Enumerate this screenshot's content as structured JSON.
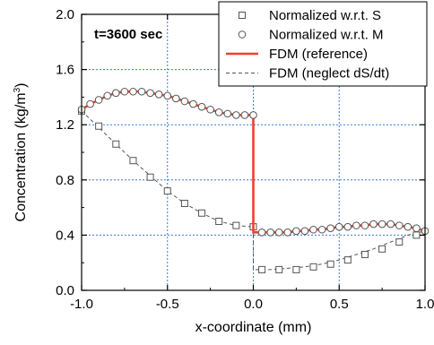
{
  "chart_data": {
    "type": "line",
    "title": "",
    "annotation": "t=3600 sec",
    "xlabel": "x-coordinate (mm)",
    "ylabel_main": "Concentration (kg/m",
    "ylabel_sup": "3",
    "ylabel_close": ")",
    "xlim": [
      -1.0,
      1.0
    ],
    "ylim": [
      0.0,
      2.0
    ],
    "xticks": [
      -1.0,
      -0.5,
      0.0,
      0.5,
      1.0
    ],
    "xtick_labels": [
      "-1.0",
      "-0.5",
      "0.0",
      "0.5",
      "1.0"
    ],
    "yticks": [
      0.0,
      0.4,
      0.8,
      1.2,
      1.6,
      2.0
    ],
    "ytick_labels": [
      "0.0",
      "0.4",
      "0.8",
      "1.2",
      "1.6",
      "2.0"
    ],
    "grid": true,
    "grid_color": "#3a78d8",
    "legend_position": "top-right",
    "series": [
      {
        "name": "Normalized w.r.t. S",
        "style": "square-marker",
        "color": "#555555",
        "x": [
          -1.0,
          -0.9,
          -0.8,
          -0.7,
          -0.6,
          -0.5,
          -0.4,
          -0.3,
          -0.2,
          -0.1,
          0.0,
          0.05,
          0.15,
          0.25,
          0.35,
          0.45,
          0.55,
          0.65,
          0.75,
          0.85,
          0.95
        ],
        "y": [
          1.3,
          1.19,
          1.06,
          0.94,
          0.82,
          0.72,
          0.63,
          0.56,
          0.5,
          0.47,
          0.46,
          0.15,
          0.15,
          0.15,
          0.17,
          0.19,
          0.22,
          0.26,
          0.3,
          0.35,
          0.4
        ]
      },
      {
        "name": "Normalized w.r.t. M",
        "style": "circle-marker",
        "color": "#555555",
        "x": [
          -1.0,
          -0.95,
          -0.9,
          -0.85,
          -0.8,
          -0.75,
          -0.7,
          -0.65,
          -0.6,
          -0.55,
          -0.5,
          -0.45,
          -0.4,
          -0.35,
          -0.3,
          -0.25,
          -0.2,
          -0.15,
          -0.1,
          -0.05,
          0.0,
          0.05,
          0.1,
          0.15,
          0.2,
          0.25,
          0.3,
          0.35,
          0.4,
          0.45,
          0.5,
          0.55,
          0.6,
          0.65,
          0.7,
          0.75,
          0.8,
          0.85,
          0.9,
          0.95,
          1.0
        ],
        "y": [
          1.31,
          1.35,
          1.38,
          1.41,
          1.43,
          1.44,
          1.44,
          1.44,
          1.43,
          1.42,
          1.41,
          1.39,
          1.37,
          1.35,
          1.33,
          1.31,
          1.29,
          1.28,
          1.27,
          1.27,
          1.27,
          0.42,
          0.42,
          0.42,
          0.42,
          0.43,
          0.43,
          0.44,
          0.44,
          0.45,
          0.46,
          0.46,
          0.47,
          0.47,
          0.48,
          0.48,
          0.48,
          0.47,
          0.46,
          0.45,
          0.43
        ]
      },
      {
        "name": "FDM (reference)",
        "style": "solid-line",
        "color": "#e8452a",
        "x": [
          -1.0,
          -0.95,
          -0.9,
          -0.85,
          -0.8,
          -0.75,
          -0.7,
          -0.65,
          -0.6,
          -0.55,
          -0.5,
          -0.45,
          -0.4,
          -0.35,
          -0.3,
          -0.25,
          -0.2,
          -0.15,
          -0.1,
          -0.05,
          0.0,
          0.0,
          0.05,
          0.1,
          0.15,
          0.2,
          0.25,
          0.3,
          0.35,
          0.4,
          0.45,
          0.5,
          0.55,
          0.6,
          0.65,
          0.7,
          0.75,
          0.8,
          0.85,
          0.9,
          0.95,
          1.0
        ],
        "y": [
          1.31,
          1.35,
          1.38,
          1.41,
          1.43,
          1.44,
          1.44,
          1.44,
          1.43,
          1.42,
          1.41,
          1.39,
          1.37,
          1.35,
          1.33,
          1.31,
          1.29,
          1.28,
          1.27,
          1.27,
          1.27,
          0.42,
          0.42,
          0.42,
          0.42,
          0.42,
          0.43,
          0.43,
          0.44,
          0.44,
          0.45,
          0.46,
          0.46,
          0.47,
          0.47,
          0.48,
          0.48,
          0.48,
          0.47,
          0.46,
          0.45,
          0.43
        ]
      },
      {
        "name": "FDM (neglect dS/dt)",
        "style": "dashed-line",
        "color": "#555555",
        "x": [
          -1.0,
          -0.9,
          -0.8,
          -0.7,
          -0.6,
          -0.5,
          -0.4,
          -0.3,
          -0.2,
          -0.1,
          0.0,
          0.0,
          0.1,
          0.2,
          0.3,
          0.4,
          0.5,
          0.6,
          0.7,
          0.8,
          0.9,
          1.0
        ],
        "y": [
          1.3,
          1.18,
          1.06,
          0.94,
          0.83,
          0.72,
          0.63,
          0.56,
          0.5,
          0.47,
          0.46,
          0.15,
          0.15,
          0.16,
          0.17,
          0.19,
          0.22,
          0.26,
          0.3,
          0.35,
          0.4,
          0.43
        ]
      }
    ]
  }
}
